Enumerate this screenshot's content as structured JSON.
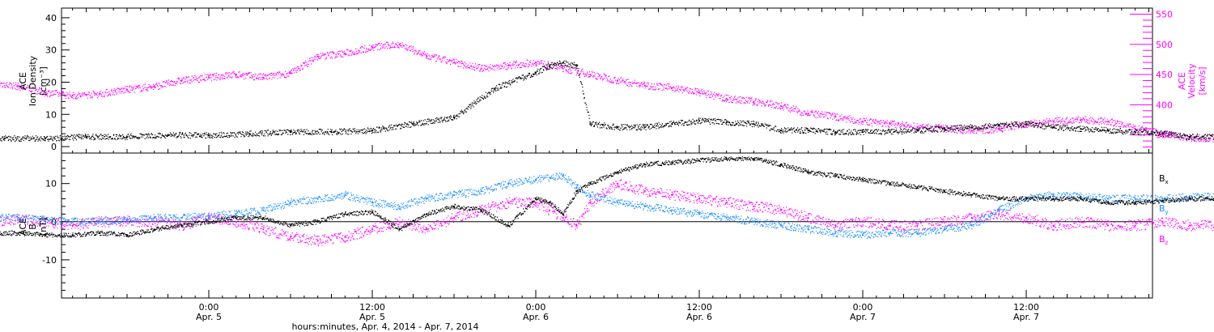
{
  "chart_data": [
    {
      "type": "scatter",
      "panel": "plasma",
      "y_left_label": [
        "ACE",
        "Ion Density",
        "[cm⁻³]"
      ],
      "y_right_label": [
        "ACE",
        "Velocity",
        "[km/s]"
      ],
      "y_left_ticks": [
        "0",
        "10",
        "20",
        "30",
        "40"
      ],
      "y_right_ticks": [
        "350",
        "400",
        "450",
        "500",
        "550"
      ],
      "ylim_left": [
        -2,
        43
      ],
      "ylim_right": [
        320,
        560
      ],
      "left_color": "#000000",
      "right_color": "#ff00ff",
      "series": [
        {
          "axis": "left",
          "color": "#000000",
          "x_hours": [
            0,
            3,
            6,
            9,
            12,
            15,
            18,
            21,
            24,
            27,
            30,
            33,
            36,
            39,
            42,
            45,
            48,
            49,
            50,
            51,
            52,
            54,
            56,
            58,
            60,
            62,
            64,
            66,
            68,
            70,
            72,
            74,
            76,
            78,
            80,
            82,
            84,
            86,
            88,
            90,
            92,
            94,
            96,
            98,
            100,
            102,
            104,
            106,
            108,
            110,
            112,
            112.5
          ],
          "values": [
            3.5,
            3,
            2.5,
            2.5,
            2.5,
            3,
            3,
            3.5,
            3.5,
            4,
            4.5,
            4.5,
            5,
            7,
            9,
            18,
            23,
            25,
            26,
            25,
            7,
            6,
            6,
            7,
            8,
            7.5,
            7,
            5,
            5,
            4.5,
            4.5,
            4.5,
            5,
            5.5,
            6,
            6.5,
            7,
            6,
            5.5,
            5,
            4.5,
            4,
            3,
            3,
            3.5,
            3,
            4,
            8,
            11,
            12,
            8,
            1.5
          ]
        },
        {
          "axis": "right",
          "color": "#ff00ff",
          "x_hours": [
            0,
            2,
            4,
            6,
            8,
            10,
            12,
            14,
            16,
            18,
            20,
            22,
            24,
            26,
            28,
            30,
            32,
            34,
            36,
            38,
            40,
            42,
            44,
            46,
            48,
            50,
            52,
            54,
            56,
            58,
            60,
            62,
            64,
            66,
            68,
            70,
            72,
            74,
            76,
            78,
            80,
            82,
            84,
            86,
            88,
            90,
            92,
            94,
            96,
            98,
            100,
            102,
            104,
            106,
            108,
            110,
            112,
            112.5
          ],
          "values": [
            445,
            450,
            460,
            445,
            437,
            430,
            420,
            415,
            418,
            425,
            430,
            440,
            445,
            450,
            445,
            452,
            480,
            485,
            495,
            500,
            480,
            470,
            460,
            465,
            470,
            460,
            450,
            440,
            432,
            428,
            420,
            410,
            405,
            398,
            385,
            380,
            372,
            368,
            363,
            360,
            357,
            360,
            368,
            372,
            375,
            372,
            360,
            352,
            345,
            344,
            340,
            338,
            350,
            360,
            370,
            380,
            382,
            380
          ]
        }
      ]
    },
    {
      "type": "line",
      "panel": "magnetic",
      "y_label": [
        "ACE",
        "B",
        "[nT]"
      ],
      "y_ticks": [
        "-10",
        "0",
        "10"
      ],
      "ylim": [
        -20,
        18
      ],
      "zero_line": true,
      "series": [
        {
          "name": "Bx",
          "color": "#000000",
          "x_hours": [
            0,
            2,
            4,
            6,
            8,
            10,
            12,
            14,
            16,
            18,
            20,
            22,
            24,
            26,
            28,
            30,
            32,
            34,
            36,
            38,
            40,
            42,
            44,
            46,
            48,
            49,
            50,
            51,
            52,
            54,
            56,
            58,
            60,
            62,
            64,
            66,
            68,
            70,
            72,
            74,
            76,
            78,
            80,
            82,
            84,
            86,
            88,
            90,
            92,
            94,
            96,
            98,
            100,
            102,
            104,
            106,
            108,
            110,
            111,
            112,
            112.5
          ],
          "values": [
            -3,
            -2,
            -2,
            -3,
            -3,
            -3,
            -3.5,
            -3.5,
            -3,
            -3.5,
            -2,
            -1,
            0,
            1,
            1,
            -1,
            0,
            2,
            2.5,
            -2,
            2,
            4,
            3,
            -1,
            6,
            5,
            2,
            8,
            10,
            13,
            15,
            15.5,
            16,
            16.5,
            16.5,
            15,
            13,
            12,
            11,
            10,
            9,
            8,
            7,
            6,
            6,
            6,
            6,
            5,
            5,
            5.5,
            6,
            6,
            5,
            5,
            5,
            6,
            6.5,
            5,
            -3,
            -2,
            -2
          ]
        },
        {
          "name": "By",
          "color": "#1e90ff",
          "x_hours": [
            0,
            2,
            4,
            6,
            8,
            10,
            12,
            14,
            16,
            18,
            20,
            22,
            24,
            26,
            28,
            30,
            32,
            34,
            36,
            38,
            40,
            42,
            44,
            46,
            48,
            50,
            51,
            52,
            54,
            56,
            58,
            60,
            62,
            64,
            66,
            68,
            70,
            72,
            74,
            76,
            78,
            80,
            82,
            84,
            86,
            88,
            90,
            92,
            94,
            96,
            98,
            100,
            102,
            104,
            106,
            108,
            110,
            111,
            112,
            112.5
          ],
          "values": [
            2,
            2.5,
            2,
            1,
            1,
            1,
            0.5,
            0,
            0,
            0.5,
            1,
            1,
            1.5,
            2,
            3,
            5,
            6,
            7,
            5,
            4,
            6,
            7,
            8,
            10,
            11,
            12,
            9,
            7,
            5,
            4,
            3,
            2,
            1,
            0,
            -1,
            -2,
            -3,
            -3.5,
            -3,
            -3,
            -2,
            -1,
            3,
            6,
            7,
            6.5,
            6,
            6,
            6,
            6.5,
            6.5,
            6,
            6,
            6,
            5.5,
            5.5,
            4,
            -4,
            -5,
            6
          ]
        },
        {
          "name": "Bz",
          "color": "#ff00ff",
          "x_hours": [
            0,
            2,
            4,
            6,
            8,
            10,
            12,
            14,
            16,
            18,
            20,
            22,
            24,
            26,
            28,
            30,
            32,
            34,
            36,
            38,
            40,
            42,
            44,
            46,
            48,
            49,
            50,
            51,
            52,
            54,
            56,
            58,
            60,
            62,
            64,
            66,
            68,
            70,
            72,
            74,
            76,
            78,
            80,
            82,
            84,
            86,
            88,
            90,
            92,
            94,
            96,
            98,
            100,
            102,
            104,
            106,
            108,
            110,
            111,
            112,
            112.5
          ],
          "values": [
            -1,
            -1,
            1,
            0,
            0,
            0.5,
            0,
            -1,
            0,
            0,
            0,
            -1,
            1,
            0,
            -2,
            -4,
            -5,
            -4,
            -2,
            0,
            -2,
            1,
            3,
            5,
            5,
            3,
            1,
            -1,
            5,
            10,
            8,
            7,
            6,
            5,
            4,
            3,
            1,
            -1,
            0,
            -1,
            -1,
            0,
            1,
            2,
            1,
            -1,
            0,
            -1,
            -1,
            0,
            -1,
            -1,
            0,
            -1,
            0,
            1,
            2,
            3,
            6,
            4,
            -6
          ]
        }
      ]
    }
  ],
  "x_axis": {
    "ticks": [
      {
        "time": "0:00",
        "date": "Apr. 5",
        "hours": 24
      },
      {
        "time": "12:00",
        "date": "Apr. 5",
        "hours": 36
      },
      {
        "time": "0:00",
        "date": "Apr. 6",
        "hours": 48
      },
      {
        "time": "12:00",
        "date": "Apr. 6",
        "hours": 60
      },
      {
        "time": "0:00",
        "date": "Apr. 7",
        "hours": 72
      },
      {
        "time": "12:00",
        "date": "Apr. 7",
        "hours": 84
      }
    ],
    "xlim_hours": [
      13,
      93.5
    ],
    "label": "hours:minutes, Apr.  4, 2014 - Apr.  7, 2014"
  },
  "mag_legend": [
    {
      "label": "B",
      "sub": "x",
      "color": "#000000"
    },
    {
      "label": "B",
      "sub": "y",
      "color": "#1e90ff"
    },
    {
      "label": "B",
      "sub": "z",
      "color": "#ff00ff"
    }
  ]
}
